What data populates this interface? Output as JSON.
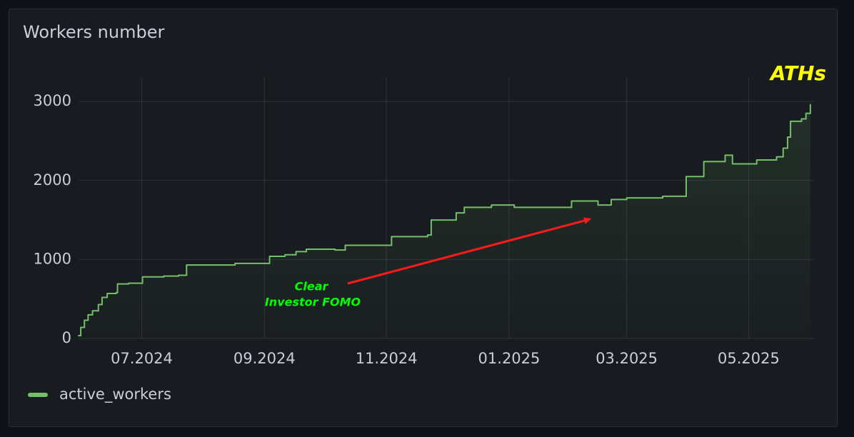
{
  "chart_data": {
    "type": "line",
    "title": "Workers number",
    "step": "after",
    "x": [
      2024.414,
      2024.417,
      2024.422,
      2024.427,
      2024.433,
      2024.441,
      2024.446,
      2024.453,
      2024.465,
      2024.467,
      2024.482,
      2024.501,
      2024.53,
      2024.55,
      2024.561,
      2024.627,
      2024.674,
      2024.695,
      2024.71,
      2024.724,
      2024.763,
      2024.777,
      2024.84,
      2024.889,
      2024.894,
      2024.928,
      2024.939,
      2024.976,
      2025.007,
      2025.085,
      2025.121,
      2025.139,
      2025.16,
      2025.209,
      2025.241,
      2025.265,
      2025.294,
      2025.304,
      2025.337,
      2025.364,
      2025.373,
      2025.379,
      2025.383,
      2025.398,
      2025.404,
      2025.41
    ],
    "series": [
      {
        "name": "active_workers",
        "color": "#73bf69",
        "values": [
          36,
          140,
          230,
          300,
          350,
          430,
          520,
          570,
          580,
          690,
          700,
          780,
          790,
          800,
          930,
          950,
          1040,
          1060,
          1100,
          1130,
          1120,
          1180,
          1290,
          1310,
          1500,
          1590,
          1660,
          1690,
          1660,
          1740,
          1690,
          1760,
          1780,
          1800,
          2050,
          2240,
          2320,
          2210,
          2260,
          2300,
          2410,
          2550,
          2750,
          2780,
          2850,
          2960
        ]
      }
    ],
    "xlim": [
      2024.414,
      2025.415
    ],
    "xticks": [
      {
        "value": 2024.5,
        "label": "07.2024"
      },
      {
        "value": 2024.667,
        "label": "09.2024"
      },
      {
        "value": 2024.833,
        "label": "11.2024"
      },
      {
        "value": 2025.0,
        "label": "01.2025"
      },
      {
        "value": 2025.16,
        "label": "03.2025"
      },
      {
        "value": 2025.326,
        "label": "05.2025"
      }
    ],
    "ylim": [
      0,
      3300
    ],
    "yticks": [
      0,
      1000,
      2000,
      3000
    ],
    "grid": true,
    "legend": "bottom-left",
    "annotations": [
      {
        "text": "ATHs",
        "color": "#ffff00"
      },
      {
        "text": "Clear",
        "color": "#00ff00"
      },
      {
        "text": "Investor FOMO",
        "color": "#00ff00"
      }
    ]
  }
}
